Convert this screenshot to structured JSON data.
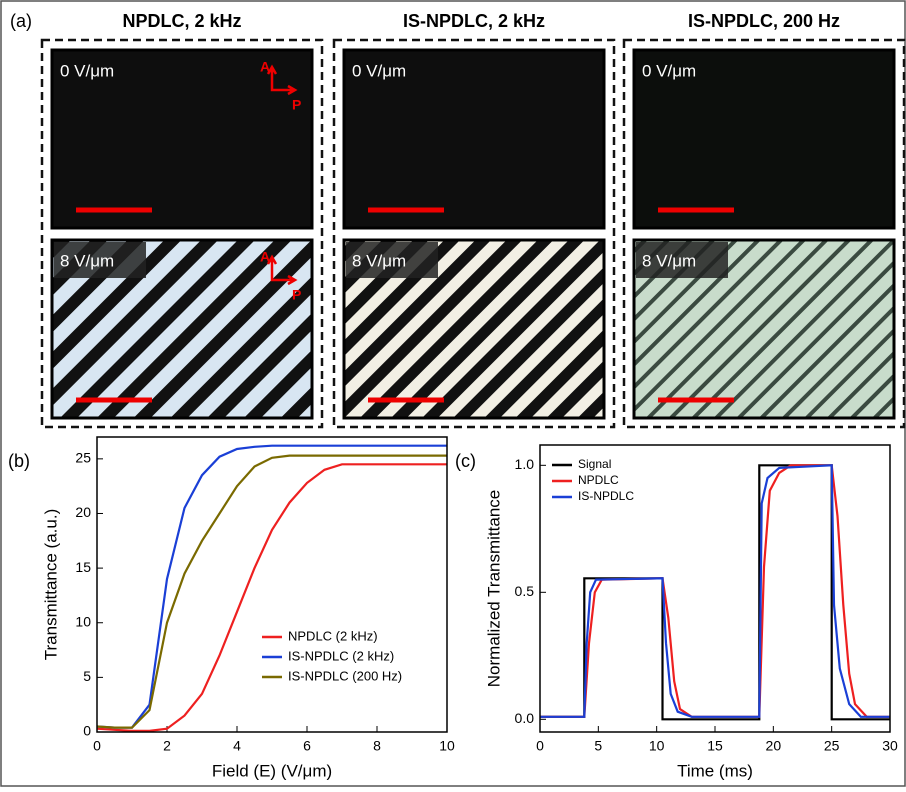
{
  "panel_a": {
    "label": "(a)",
    "columns": [
      {
        "title": "NPDLC, 2 kHz",
        "images": [
          {
            "field": "0 V/μm",
            "axes": [
              "A",
              "P"
            ]
          },
          {
            "field": "8 V/μm",
            "axes": [
              "A",
              "P"
            ]
          }
        ]
      },
      {
        "title": "IS-NPDLC,  2 kHz",
        "images": [
          {
            "field": "0 V/μm"
          },
          {
            "field": "8 V/μm"
          }
        ]
      },
      {
        "title": "IS-NPDLC,  200 Hz",
        "images": [
          {
            "field": "0 V/μm"
          },
          {
            "field": "8 V/μm"
          }
        ]
      }
    ]
  },
  "chart_data": [
    {
      "type": "line",
      "panel_label": "(b)",
      "x_label": "Field (E) (V/μm)",
      "y_label": "Transmittance (a.u.)",
      "xlim": [
        0,
        10
      ],
      "ylim": [
        0,
        27
      ],
      "xticks": [
        0,
        2,
        4,
        6,
        8,
        10
      ],
      "yticks": [
        0,
        5,
        10,
        15,
        20,
        25
      ],
      "legend": "lower right",
      "x": [
        0,
        0.5,
        1,
        1.5,
        2,
        2.5,
        3,
        3.5,
        4,
        4.5,
        5,
        5.5,
        6,
        6.5,
        7,
        7.5,
        8,
        8.5,
        9,
        9.5,
        10
      ],
      "series": [
        {
          "name": "NPDLC (2 kHz)",
          "color": "#ee2020",
          "values": [
            0.3,
            0.2,
            0.1,
            0.1,
            0.3,
            1.5,
            3.5,
            7,
            11,
            15,
            18.5,
            21,
            22.8,
            24,
            24.5,
            24.5,
            24.5,
            24.5,
            24.5,
            24.5,
            24.5
          ]
        },
        {
          "name": "IS-NPDLC (2 kHz)",
          "color": "#1a3fd6",
          "values": [
            0.5,
            0.4,
            0.4,
            2.5,
            14,
            20.5,
            23.5,
            25.2,
            25.9,
            26.1,
            26.2,
            26.2,
            26.2,
            26.2,
            26.2,
            26.2,
            26.2,
            26.2,
            26.2,
            26.2,
            26.2
          ]
        },
        {
          "name": "IS-NPDLC (200 Hz)",
          "color": "#7a6a00",
          "values": [
            0.5,
            0.4,
            0.4,
            2,
            10,
            14.5,
            17.5,
            20,
            22.5,
            24.3,
            25.1,
            25.3,
            25.3,
            25.3,
            25.3,
            25.3,
            25.3,
            25.3,
            25.3,
            25.3,
            25.3
          ]
        }
      ]
    },
    {
      "type": "line",
      "panel_label": "(c)",
      "x_label": "Time (ms)",
      "y_label": "Normalized Transmittance",
      "xlim": [
        0,
        30
      ],
      "ylim": [
        -0.05,
        1.08
      ],
      "xticks": [
        0,
        5,
        10,
        15,
        20,
        25,
        30
      ],
      "yticks": [
        {
          "value": 0,
          "label": "0.0"
        },
        {
          "value": 0.5,
          "label": "0.5"
        },
        {
          "value": 1,
          "label": "1.0"
        }
      ],
      "legend": "upper left",
      "series": [
        {
          "name": "Signal",
          "color": "#000000",
          "x": [
            0,
            3.8,
            3.8,
            10.5,
            10.5,
            18.8,
            18.8,
            25,
            25,
            30
          ],
          "values": [
            0.01,
            0.01,
            0.555,
            0.555,
            0,
            0,
            1,
            1,
            0,
            0
          ]
        },
        {
          "name": "NPDLC",
          "color": "#ee2020",
          "x": [
            0,
            3.8,
            4.2,
            4.7,
            5.3,
            10.5,
            11,
            11.5,
            12,
            13,
            18.8,
            19.2,
            19.7,
            20.5,
            21.5,
            25,
            25.5,
            26,
            26.5,
            27,
            28,
            30
          ],
          "values": [
            0.01,
            0.01,
            0.3,
            0.5,
            0.55,
            0.555,
            0.4,
            0.15,
            0.04,
            0.01,
            0.01,
            0.6,
            0.9,
            0.97,
            1,
            1,
            0.8,
            0.45,
            0.18,
            0.06,
            0.01,
            0.01
          ]
        },
        {
          "name": "IS-NPDLC",
          "color": "#1a3fd6",
          "x": [
            0,
            3.8,
            4,
            4.3,
            4.8,
            10.5,
            10.8,
            11.2,
            11.8,
            13,
            18.8,
            19,
            19.5,
            20.5,
            25,
            25.2,
            25.7,
            26.5,
            27.5,
            30
          ],
          "values": [
            0.01,
            0.01,
            0.3,
            0.5,
            0.55,
            0.555,
            0.3,
            0.1,
            0.03,
            0.01,
            0.01,
            0.85,
            0.95,
            0.99,
            1,
            0.45,
            0.2,
            0.06,
            0.01,
            0.01
          ]
        }
      ]
    }
  ]
}
